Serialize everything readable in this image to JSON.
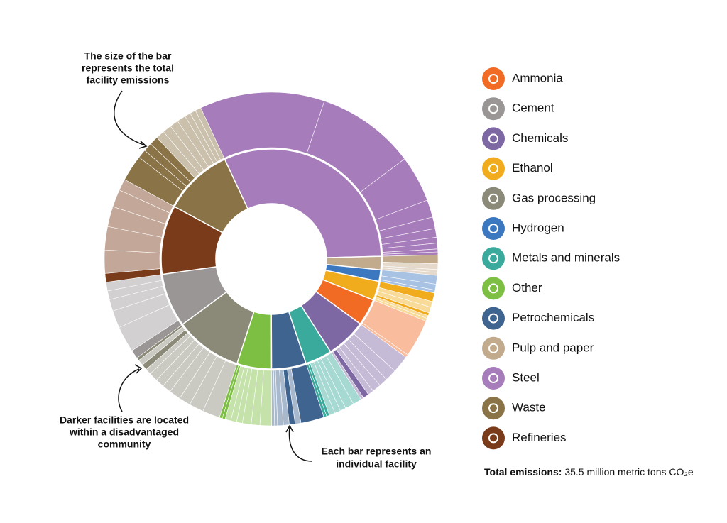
{
  "chart_data": {
    "type": "sunburst",
    "annotations": [
      [
        "The size of the bar",
        "represents the total",
        "facility emissions"
      ],
      [
        "Darker facilities are located",
        "within a disadvantaged",
        "community"
      ],
      [
        "Each bar represents an",
        "individual facility"
      ]
    ],
    "total_label": "Total emissions:",
    "total_text": "35.5 million metric tons CO₂e",
    "sectors": [
      {
        "name": "Ammonia",
        "color": "#f26b25",
        "value": 1.4,
        "facilities": [
          1.3,
          0.1
        ],
        "dark": [
          false,
          false
        ]
      },
      {
        "name": "Cement",
        "color": "#9b9696",
        "value": 2.8,
        "facilities": [
          0.3,
          0.9,
          0.6,
          0.4,
          0.3,
          0.3
        ],
        "dark": [
          true,
          false,
          false,
          false,
          false,
          false
        ]
      },
      {
        "name": "Chemicals",
        "color": "#7d68a3",
        "value": 2.1,
        "facilities": [
          0.6,
          0.4,
          0.3,
          0.3,
          0.2,
          0.2,
          0.1
        ],
        "dark": [
          false,
          false,
          false,
          false,
          false,
          true,
          false
        ]
      },
      {
        "name": "Ethanol",
        "color": "#f0ac1c",
        "value": 1.0,
        "facilities": [
          0.3,
          0.2,
          0.2,
          0.1,
          0.1,
          0.1
        ],
        "dark": [
          true,
          false,
          false,
          true,
          false,
          false
        ]
      },
      {
        "name": "Gas processing",
        "color": "#8b8a78",
        "value": 3.5,
        "facilities": [
          0.6,
          0.5,
          0.4,
          0.4,
          0.3,
          0.3,
          0.3,
          0.2,
          0.2,
          0.2,
          0.1
        ],
        "dark": [
          false,
          false,
          false,
          false,
          false,
          false,
          false,
          false,
          true,
          false,
          true
        ]
      },
      {
        "name": "Hydrogen",
        "color": "#3c78c0",
        "value": 0.6,
        "facilities": [
          0.3,
          0.2,
          0.1
        ],
        "dark": [
          false,
          false,
          false
        ]
      },
      {
        "name": "Metals and minerals",
        "color": "#3aaa9c",
        "value": 1.4,
        "facilities": [
          0.3,
          0.3,
          0.2,
          0.2,
          0.2,
          0.1,
          0.1
        ],
        "dark": [
          false,
          false,
          false,
          false,
          false,
          true,
          true
        ]
      },
      {
        "name": "Other",
        "color": "#7cbf42",
        "value": 1.8,
        "facilities": [
          0.4,
          0.3,
          0.3,
          0.2,
          0.2,
          0.2,
          0.1,
          0.1
        ],
        "dark": [
          false,
          false,
          false,
          false,
          false,
          false,
          true,
          true
        ]
      },
      {
        "name": "Petrochemicals",
        "color": "#3f648f",
        "value": 1.8,
        "facilities": [
          0.8,
          0.2,
          0.2,
          0.2,
          0.2,
          0.1,
          0.1
        ],
        "dark": [
          true,
          false,
          true,
          false,
          false,
          false,
          false
        ]
      },
      {
        "name": "Pulp and paper",
        "color": "#c2aa8c",
        "value": 0.7,
        "facilities": [
          0.3,
          0.2,
          0.1,
          0.1
        ],
        "dark": [
          true,
          false,
          false,
          false
        ]
      },
      {
        "name": "Steel",
        "color": "#a77cbb",
        "value": 11.2,
        "facilities": [
          4.3,
          3.4,
          1.6,
          0.6,
          0.4,
          0.3,
          0.2,
          0.2,
          0.1,
          0.1
        ],
        "dark": [
          true,
          true,
          true,
          true,
          true,
          true,
          true,
          true,
          true,
          true
        ]
      },
      {
        "name": "Waste",
        "color": "#8a7346",
        "value": 3.6,
        "facilities": [
          0.9,
          0.3,
          0.3,
          0.3,
          0.3,
          0.3,
          0.3,
          0.3,
          0.2,
          0.2,
          0.2
        ],
        "dark": [
          true,
          true,
          true,
          true,
          false,
          false,
          false,
          false,
          false,
          false,
          false
        ]
      },
      {
        "name": "Refineries",
        "color": "#7a3b1a",
        "value": 3.6,
        "facilities": [
          0.3,
          0.8,
          0.8,
          0.7,
          0.6,
          0.4
        ],
        "dark": [
          true,
          false,
          false,
          false,
          false,
          false
        ]
      }
    ]
  }
}
